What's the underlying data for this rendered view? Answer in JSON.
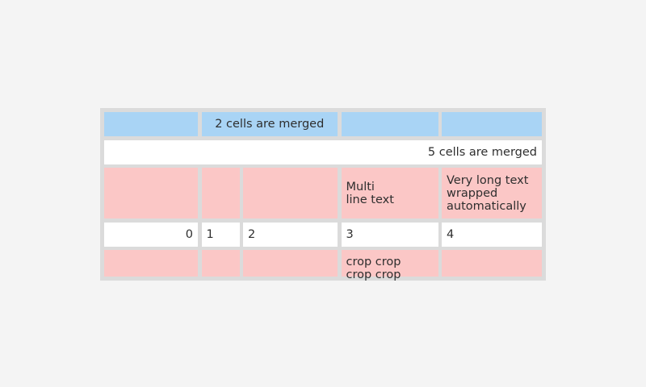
{
  "widget": {
    "name": "table",
    "colors": {
      "page_bg": "#f4f4f4",
      "grid": "#dbdbdb",
      "header_cell": "#a9d4f5",
      "highlight_cell": "#fbc7c6",
      "default_cell": "#ffffff",
      "text": "#2e2e2e"
    }
  },
  "table": {
    "rows": [
      {
        "cells": [
          "",
          "2 cells are merged",
          "",
          ""
        ]
      },
      {
        "cells": [
          "5 cells are merged"
        ]
      },
      {
        "cells": [
          "",
          "",
          "",
          "Multi\nline text",
          "Very long text wrapped automatically"
        ]
      },
      {
        "cells": [
          "0",
          "1",
          "2",
          "3",
          "4"
        ]
      },
      {
        "cells": [
          "",
          "",
          "",
          "crop crop\ncrop crop",
          ""
        ]
      }
    ]
  }
}
